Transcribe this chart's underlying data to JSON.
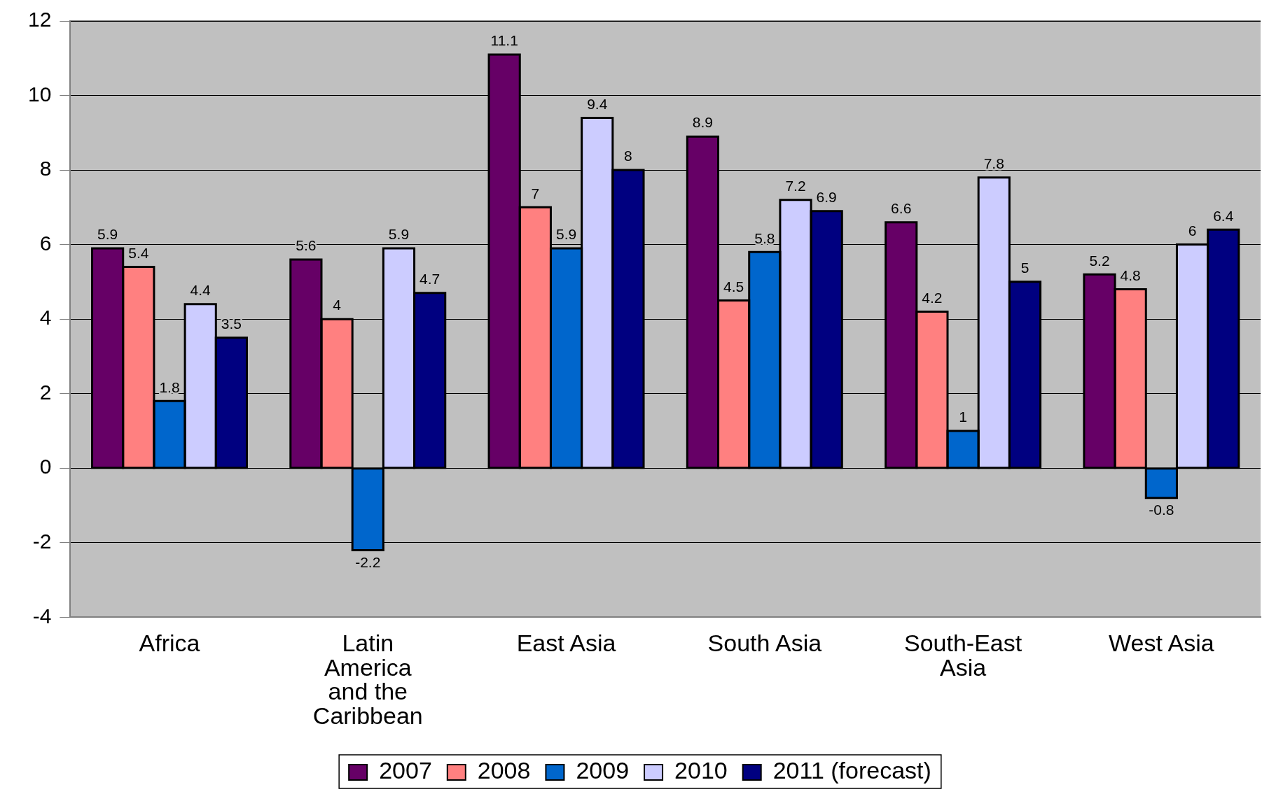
{
  "chart_data": {
    "type": "bar",
    "categories": [
      "Africa",
      "Latin America and the Caribbean",
      "East Asia",
      "South Asia",
      "South-East Asia",
      "West Asia"
    ],
    "series": [
      {
        "name": "2007",
        "color": "#660066",
        "values": [
          5.9,
          5.6,
          11.1,
          8.9,
          6.6,
          5.2
        ]
      },
      {
        "name": "2008",
        "color": "#ff8080",
        "values": [
          5.4,
          4,
          7,
          4.5,
          4.2,
          4.8
        ]
      },
      {
        "name": "2009",
        "color": "#0066cc",
        "values": [
          1.8,
          -2.2,
          5.9,
          5.8,
          1,
          -0.8
        ]
      },
      {
        "name": "2010",
        "color": "#ccccff",
        "values": [
          4.4,
          5.9,
          9.4,
          7.2,
          7.8,
          6
        ]
      },
      {
        "name": "2011 (forecast)",
        "color": "#000080",
        "values": [
          3.5,
          4.7,
          8,
          6.9,
          5,
          6.4
        ]
      }
    ],
    "ylim": [
      -4,
      12
    ],
    "yticks": [
      -4,
      -2,
      0,
      2,
      4,
      6,
      8,
      10,
      12
    ],
    "grid": "y",
    "legend": "bottom",
    "data_labels": true
  }
}
